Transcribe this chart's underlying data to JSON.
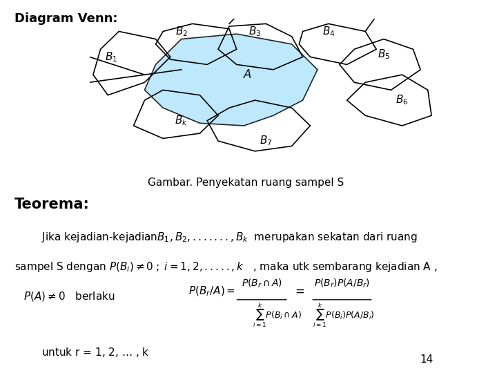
{
  "title": "Diagram Venn:",
  "caption": "Gambar. Penyekatan ruang sampel S",
  "teorema_title": "Teorema:",
  "line1": "Jika kejadian-kejadian",
  "line1b": " merupakan sekatan dari ruang",
  "line2": "sampel S dengan",
  "line2b": " , maka utk sembarang kejadian A ,",
  "line3a": "berlaku",
  "line4": "untuk r = 1, 2, … , k",
  "page_num": "14",
  "bg_color": "#ffffff",
  "box_color": "#1a237e",
  "fill_color": "#b3e5fc",
  "text_color": "#000000"
}
